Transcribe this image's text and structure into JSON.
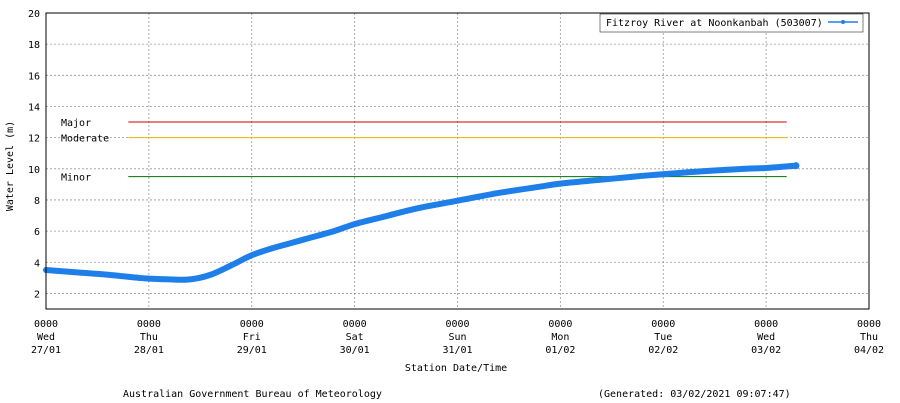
{
  "chart_data": {
    "type": "line",
    "ylabel": "Water Level (m)",
    "xlabel": "Station Date/Time",
    "ylim": [
      1,
      20
    ],
    "yticks": [
      2,
      4,
      6,
      8,
      10,
      12,
      14,
      16,
      18,
      20
    ],
    "grid": true,
    "legend_position": "top-right",
    "xticks": [
      {
        "time": "0000",
        "day": "Wed",
        "date": "27/01"
      },
      {
        "time": "0000",
        "day": "Thu",
        "date": "28/01"
      },
      {
        "time": "0000",
        "day": "Fri",
        "date": "29/01"
      },
      {
        "time": "0000",
        "day": "Sat",
        "date": "30/01"
      },
      {
        "time": "0000",
        "day": "Sun",
        "date": "31/01"
      },
      {
        "time": "0000",
        "day": "Mon",
        "date": "01/02"
      },
      {
        "time": "0000",
        "day": "Tue",
        "date": "02/02"
      },
      {
        "time": "0000",
        "day": "Wed",
        "date": "03/02"
      },
      {
        "time": "0000",
        "day": "Thu",
        "date": "04/02"
      }
    ],
    "x_unit": "days from 2021-01-27 00:00",
    "series": [
      {
        "name": "Fitzroy River at Noonkanbah (503007)",
        "color": "#1f7fe8",
        "x": [
          0.0,
          0.3,
          0.6,
          0.9,
          1.0,
          1.2,
          1.4,
          1.6,
          1.8,
          2.0,
          2.2,
          2.5,
          2.8,
          3.0,
          3.3,
          3.6,
          4.0,
          4.4,
          4.8,
          5.0,
          5.4,
          5.8,
          6.0,
          6.4,
          6.8,
          7.0,
          7.29
        ],
        "y": [
          3.5,
          3.35,
          3.2,
          3.0,
          2.95,
          2.9,
          2.9,
          3.2,
          3.8,
          4.45,
          4.9,
          5.45,
          6.0,
          6.45,
          6.95,
          7.45,
          7.95,
          8.45,
          8.85,
          9.05,
          9.3,
          9.55,
          9.65,
          9.85,
          10.0,
          10.05,
          10.2
        ]
      }
    ],
    "thresholds": [
      {
        "label": "Major",
        "value": 13.0,
        "color": "#d00000"
      },
      {
        "label": "Moderate",
        "value": 12.0,
        "color": "#e8b800"
      },
      {
        "label": "Minor",
        "value": 9.5,
        "color": "#007000"
      }
    ],
    "threshold_x_range": [
      0.8,
      7.2
    ]
  },
  "footer": {
    "left": "Australian Government Bureau of Meteorology",
    "right": "(Generated: 03/02/2021 09:07:47)"
  }
}
